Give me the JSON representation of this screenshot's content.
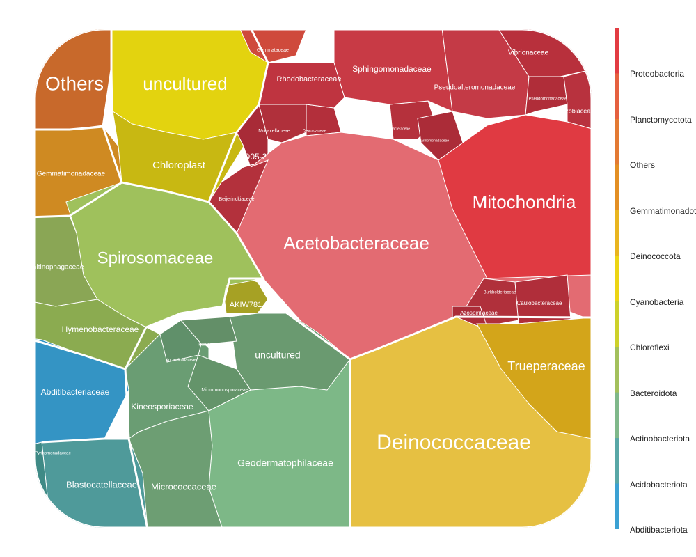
{
  "chart_data": {
    "type": "voronoi-treemap",
    "title": "",
    "legend": {
      "placement": "right",
      "entries": [
        {
          "label": "Proteobacteria",
          "color": "#e23c42"
        },
        {
          "label": "Planctomycetota",
          "color": "#e5603f"
        },
        {
          "label": "Others",
          "color": "#e37a33"
        },
        {
          "label": "Gemmatimonadota",
          "color": "#e38f24"
        },
        {
          "label": "Deinococcota",
          "color": "#e9b51f"
        },
        {
          "label": "Cyanobacteria",
          "color": "#ecd515"
        },
        {
          "label": "Chloroflexi",
          "color": "#cdd12a"
        },
        {
          "label": "Bacteroidota",
          "color": "#a3c05c"
        },
        {
          "label": "Actinobacteriota",
          "color": "#7fb88a"
        },
        {
          "label": "Acidobacteriota",
          "color": "#58a7a6"
        },
        {
          "label": "Abditibacteriota",
          "color": "#3ba1d3"
        }
      ]
    },
    "cells": [
      {
        "label": "Acetobacteraceae",
        "phylum": "Proteobacteria",
        "color": "#e36b72"
      },
      {
        "label": "Mitochondria",
        "phylum": "Proteobacteria",
        "color": "#e03a42"
      },
      {
        "label": "Sphingomonadaceae",
        "phylum": "Proteobacteria",
        "color": "#c83a45"
      },
      {
        "label": "Rhodobacteraceae",
        "phylum": "Proteobacteria",
        "color": "#bf3440"
      },
      {
        "label": "Pseudoalteromonadaceae",
        "phylum": "Proteobacteria",
        "color": "#c43a46"
      },
      {
        "label": "Vibrionaceae",
        "phylum": "Proteobacteria",
        "color": "#b8303c"
      },
      {
        "label": "Pseudomonadaceae",
        "phylum": "Proteobacteria",
        "color": "#b02d39"
      },
      {
        "label": "Rhizobiaceae",
        "phylum": "Proteobacteria",
        "color": "#b8323e"
      },
      {
        "label": "Moraxellaceae",
        "phylum": "Proteobacteria",
        "color": "#b0303b"
      },
      {
        "label": "Devosiaceae",
        "phylum": "Proteobacteria",
        "color": "#b32f3b"
      },
      {
        "label": "Caulobacteraceae",
        "phylum": "Proteobacteria",
        "color": "#b02e3a"
      },
      {
        "label": "Enhydrobacteraceae",
        "phylum": "Proteobacteria",
        "color": "#b5313c"
      },
      {
        "label": "Marinomonadaceae",
        "phylum": "Proteobacteria",
        "color": "#ab2c38"
      },
      {
        "label": "D05-2",
        "phylum": "Proteobacteria",
        "color": "#a82b37"
      },
      {
        "label": "Beijerinckiaceae",
        "phylum": "Proteobacteria",
        "color": "#b3313c"
      },
      {
        "label": "Burkholderiaceae",
        "phylum": "Proteobacteria",
        "color": "#b0303b"
      },
      {
        "label": "Azospirillaceae",
        "phylum": "Proteobacteria",
        "color": "#ab2c38"
      },
      {
        "label": "Gemmataceae",
        "phylum": "Planctomycetota",
        "color": "#cf4a3c"
      },
      {
        "label": "Others",
        "phylum": "Others",
        "color": "#c8692b"
      },
      {
        "label": "Gemmatimonadaceae",
        "phylum": "Gemmatimonadota",
        "color": "#cf8a22"
      },
      {
        "label": "Deinococcaceae",
        "phylum": "Deinococcota",
        "color": "#e6c042"
      },
      {
        "label": "Trueperaceae",
        "phylum": "Deinococcota",
        "color": "#d3a51a"
      },
      {
        "label": "uncultured",
        "phylum": "Cyanobacteria",
        "color": "#e3d30f"
      },
      {
        "label": "Chloroplast",
        "phylum": "Cyanobacteria",
        "color": "#c8b812"
      },
      {
        "label": "AKIW781",
        "phylum": "Chloroflexi",
        "color": "#a6a124"
      },
      {
        "label": "Spirosomaceae",
        "phylum": "Bacteroidota",
        "color": "#9fc15c"
      },
      {
        "label": "Hymenobacteraceae",
        "phylum": "Bacteroidota",
        "color": "#8bab50"
      },
      {
        "label": "Chitinophagaceae",
        "phylum": "Bacteroidota",
        "color": "#8aa655"
      },
      {
        "label": "Geodermatophilaceae",
        "phylum": "Actinobacteriota",
        "color": "#7db887"
      },
      {
        "label": "uncultured",
        "phylum": "Actinobacteriota",
        "color": "#6a9a70"
      },
      {
        "label": "Kineosporiaceae",
        "phylum": "Actinobacteriota",
        "color": "#6a9d73"
      },
      {
        "label": "Micrococcaceae",
        "phylum": "Actinobacteriota",
        "color": "#6d9e73"
      },
      {
        "label": "Micromonosporaceae",
        "phylum": "Actinobacteriota",
        "color": "#64946a"
      },
      {
        "label": "Nocardioidaceae",
        "phylum": "Actinobacteriota",
        "color": "#60906a"
      },
      {
        "label": "Rubrobacteraceae",
        "phylum": "Actinobacteriota",
        "color": "#638f68"
      },
      {
        "label": "Blastocatellaceae",
        "phylum": "Acidobacteriota",
        "color": "#4f9a9a"
      },
      {
        "label": "Pyrinomonadaceae",
        "phylum": "Acidobacteriota",
        "color": "#3f8a86"
      },
      {
        "label": "Abditibacteriaceae",
        "phylum": "Abditibacteriota",
        "color": "#3494c4"
      }
    ]
  }
}
